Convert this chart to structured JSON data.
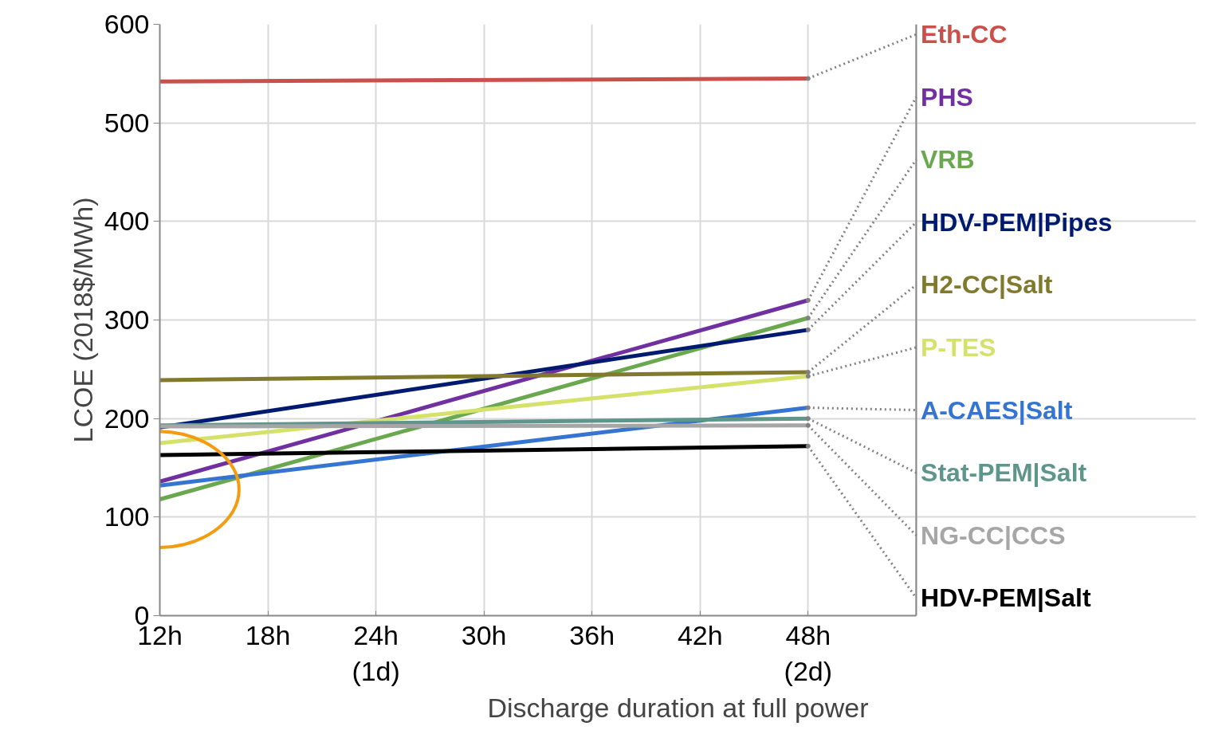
{
  "chart_data": {
    "type": "line",
    "xlabel": "Discharge duration at full power",
    "ylabel": "LCOE (2018$/MWh)",
    "x": [
      12,
      48
    ],
    "xlim": [
      12,
      54
    ],
    "xticks": [
      {
        "value": 12,
        "label": "12h"
      },
      {
        "value": 18,
        "label": "18h"
      },
      {
        "value": 24,
        "label": "24h\n(1d)"
      },
      {
        "value": 30,
        "label": "30h"
      },
      {
        "value": 36,
        "label": "36h"
      },
      {
        "value": 42,
        "label": "42h"
      },
      {
        "value": 48,
        "label": "48h\n(2d)"
      }
    ],
    "ylim": [
      0,
      600
    ],
    "yticks": [
      0,
      100,
      200,
      300,
      400,
      500,
      600
    ],
    "grid": true,
    "legend": "right",
    "marker": "none",
    "line_style": "solid",
    "series": [
      {
        "name": "Eth-CC",
        "color": "#c9504b",
        "values": [
          542,
          545
        ]
      },
      {
        "name": "PHS",
        "color": "#7030a0",
        "values": [
          136,
          320
        ]
      },
      {
        "name": "VRB",
        "color": "#6aa84f",
        "values": [
          118,
          302
        ]
      },
      {
        "name": "HDV-PEM|Pipes",
        "color": "#001a70",
        "values": [
          191,
          290
        ]
      },
      {
        "name": "H2-CC|Salt",
        "color": "#817a2c",
        "values": [
          239,
          247
        ]
      },
      {
        "name": "P-TES",
        "color": "#d4e26b",
        "values": [
          175,
          243
        ]
      },
      {
        "name": "A-CAES|Salt",
        "color": "#3574d0",
        "values": [
          132,
          211
        ]
      },
      {
        "name": "Stat-PEM|Salt",
        "color": "#5f968c",
        "values": [
          193,
          200
        ]
      },
      {
        "name": "NG-CC|CCS",
        "color": "#a6a6a6",
        "values": [
          192,
          193
        ]
      },
      {
        "name": "HDV-PEM|Salt",
        "color": "#000000",
        "values": [
          163,
          172
        ]
      }
    ]
  }
}
